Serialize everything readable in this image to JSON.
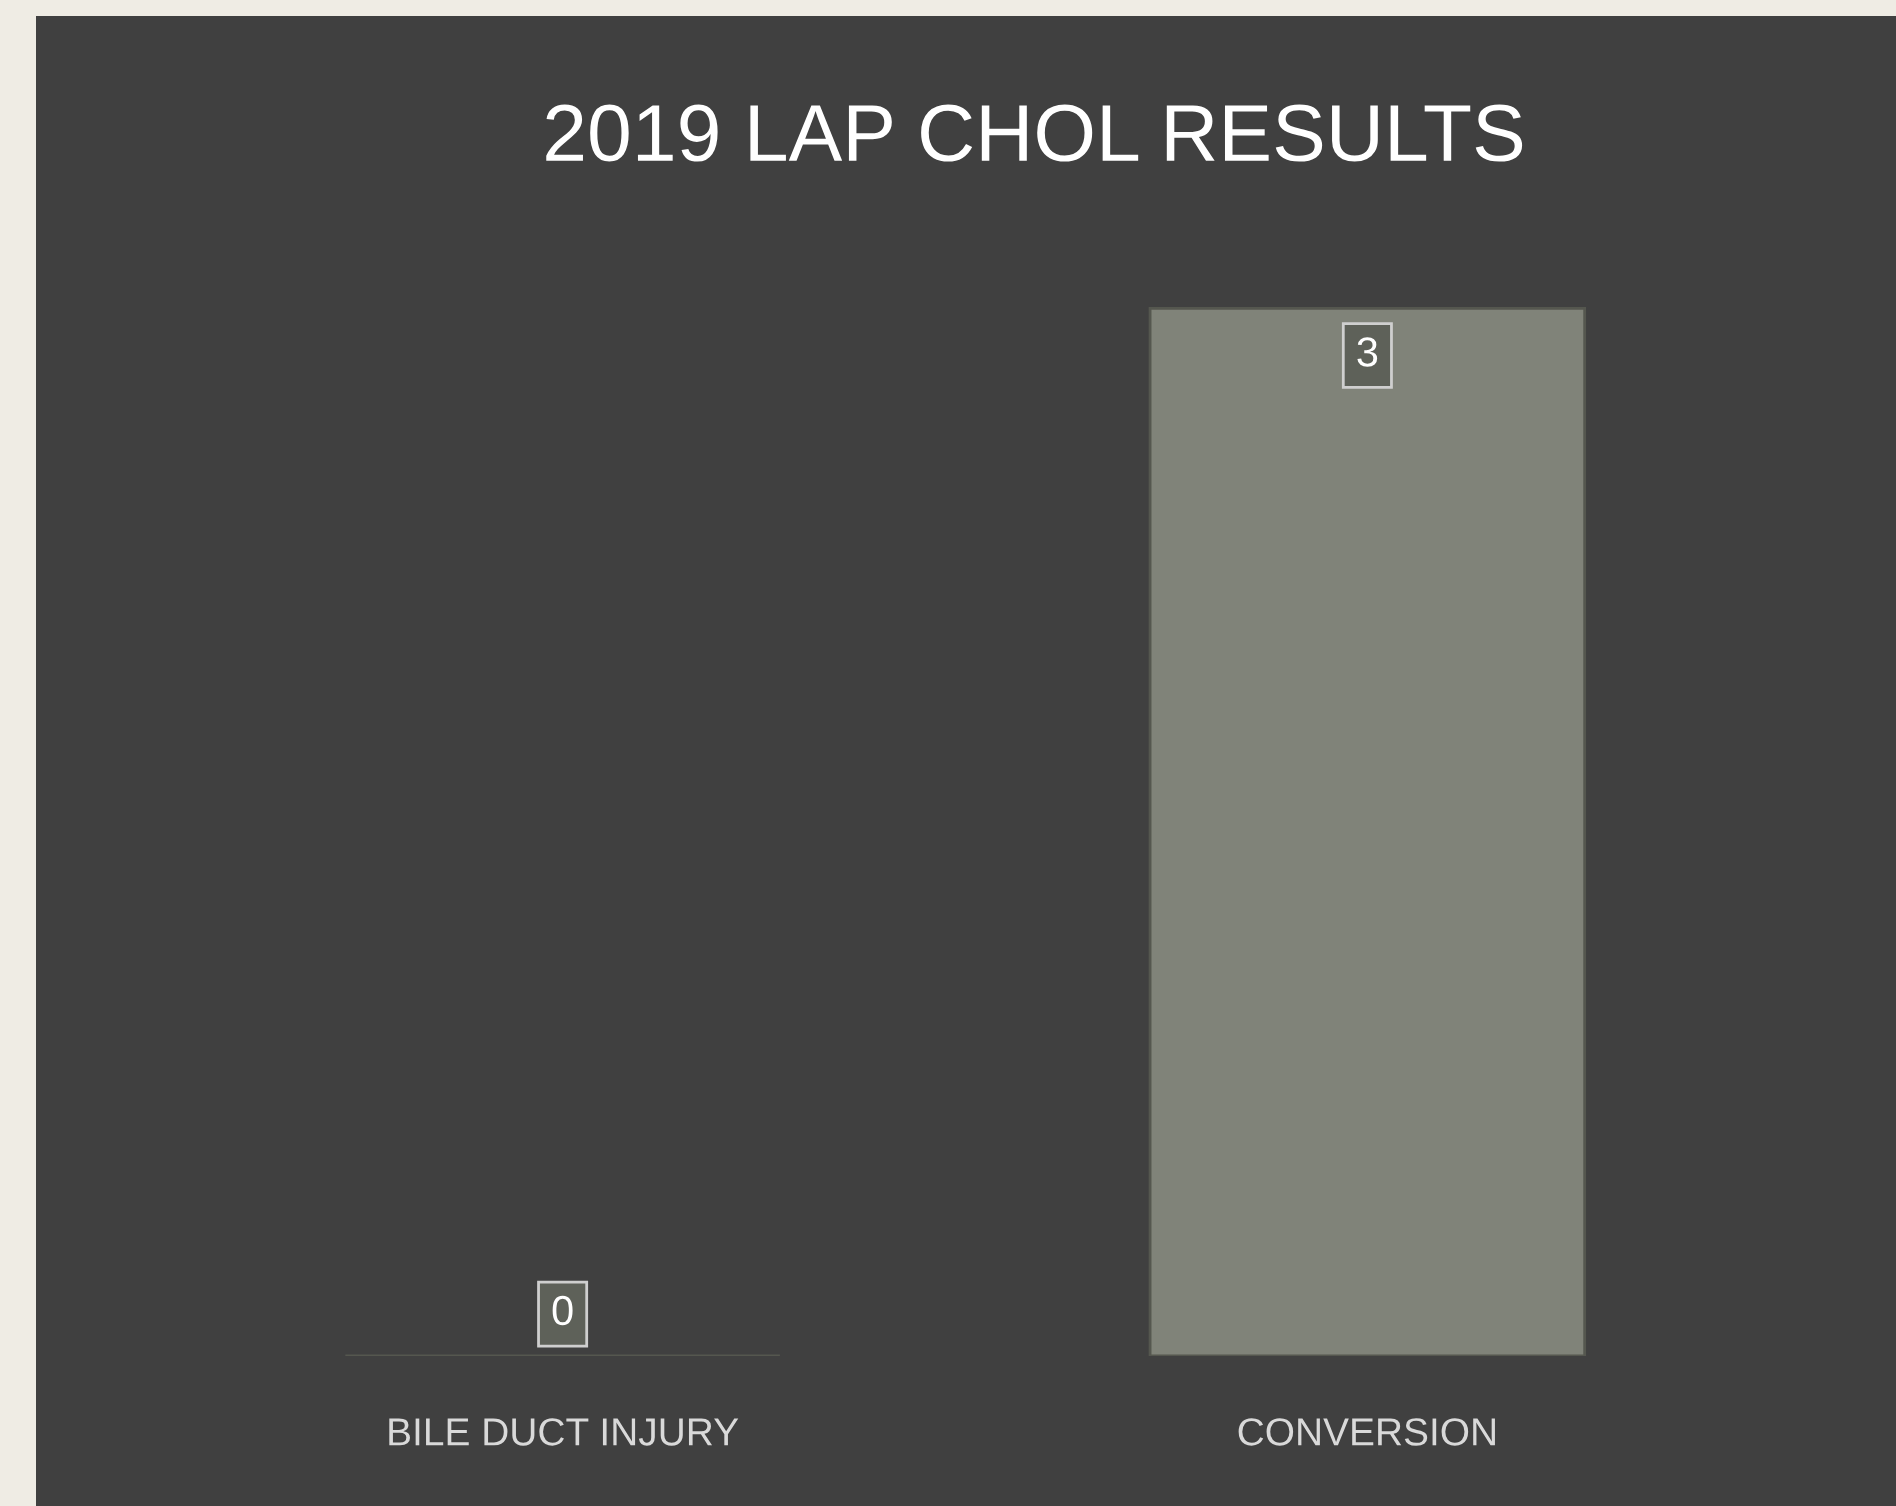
{
  "chart_data": {
    "type": "bar",
    "title": "2019 LAP CHOL RESULTS",
    "categories": [
      "BILE DUCT INJURY",
      "CONVERSION"
    ],
    "values": [
      0,
      3
    ],
    "color": "#808379",
    "data_labels": true,
    "grid": false,
    "legend": false
  }
}
